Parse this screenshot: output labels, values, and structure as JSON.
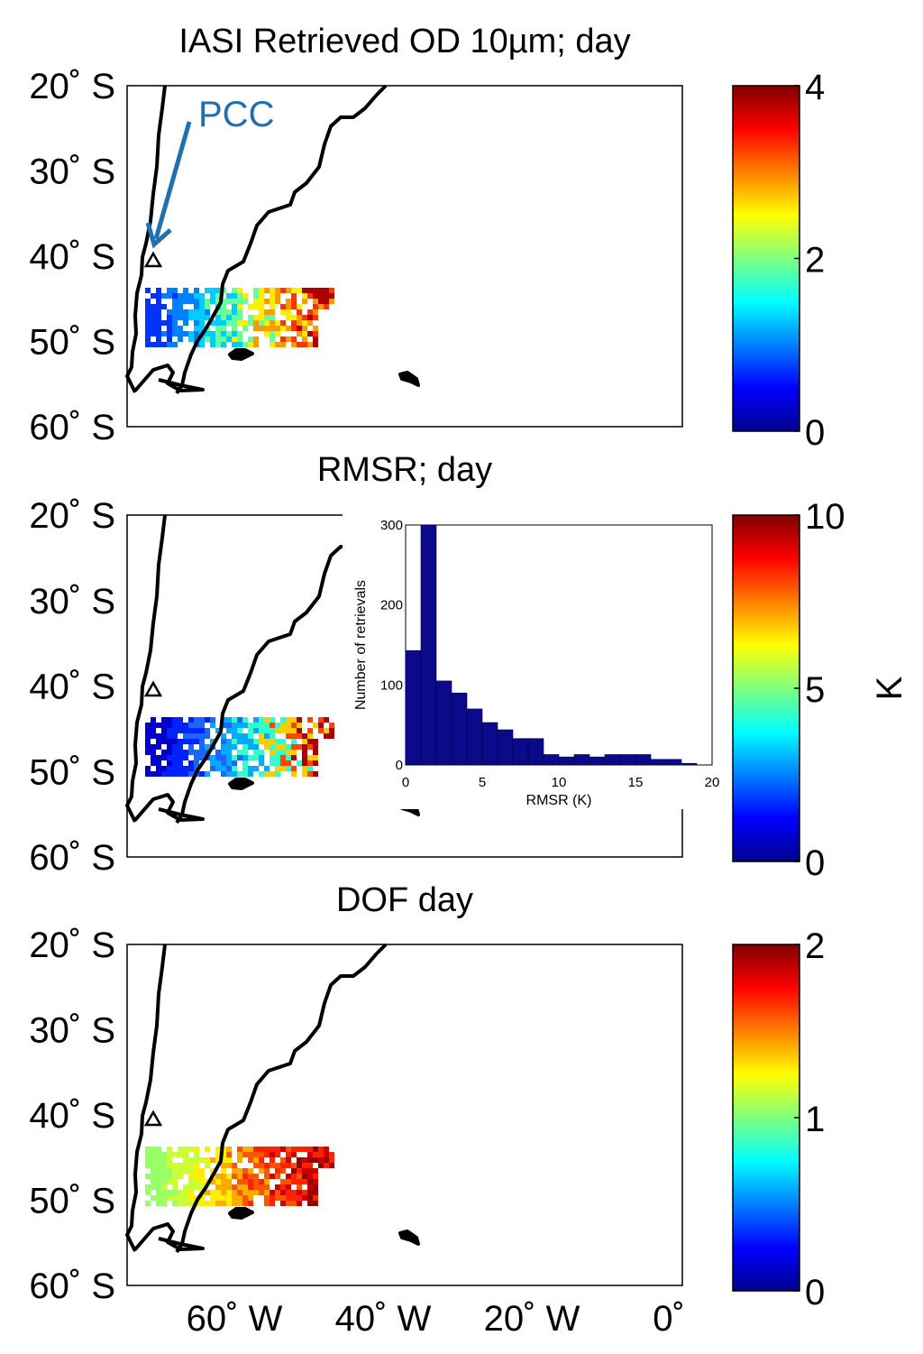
{
  "chart_data": [
    {
      "type": "heatmap",
      "title": "IASI Retrieved OD 10µm; day",
      "y_ticks": [
        "20˚ S",
        "30˚ S",
        "40˚ S",
        "50˚ S",
        "60˚ S"
      ],
      "ylim": [
        -60,
        -20
      ],
      "xlim": [
        -75,
        0
      ],
      "colorbar": {
        "min": 0,
        "max": 4,
        "ticks": [
          "0",
          "2",
          "4"
        ],
        "colormap": "jet"
      },
      "annotation": "PCC",
      "annotation_color": "#1f6fb2"
    },
    {
      "type": "heatmap",
      "title": "RMSR; day",
      "y_ticks": [
        "20˚ S",
        "30˚ S",
        "40˚ S",
        "50˚ S",
        "60˚ S"
      ],
      "ylim": [
        -60,
        -20
      ],
      "xlim": [
        -75,
        0
      ],
      "colorbar": {
        "min": 0,
        "max": 10,
        "ticks": [
          "0",
          "5",
          "10"
        ],
        "label": "K",
        "colormap": "jet"
      },
      "inset": {
        "type": "bar",
        "xlabel": "RMSR (K)",
        "ylabel": "Number of retrievals",
        "xlim": [
          0,
          20
        ],
        "ylim": [
          0,
          300
        ],
        "x_ticks": [
          "0",
          "5",
          "10",
          "15",
          "20"
        ],
        "y_ticks": [
          "0",
          "100",
          "200",
          "300"
        ],
        "bin_edges": [
          0,
          1,
          2,
          3,
          4,
          5,
          6,
          7,
          8,
          9,
          10,
          11,
          12,
          13,
          14,
          15,
          16,
          17,
          18,
          19
        ],
        "values": [
          143,
          300,
          105,
          90,
          70,
          53,
          44,
          33,
          33,
          13,
          10,
          13,
          10,
          13,
          13,
          13,
          7,
          7,
          2
        ],
        "bar_color": "#0a0a8a"
      }
    },
    {
      "type": "heatmap",
      "title": "DOF day",
      "y_ticks": [
        "20˚ S",
        "30˚ S",
        "40˚ S",
        "50˚ S",
        "60˚ S"
      ],
      "x_ticks": [
        "60˚ W",
        "40˚ W",
        "20˚ W",
        "0˚"
      ],
      "ylim": [
        -60,
        -20
      ],
      "xlim": [
        -75,
        0
      ],
      "colorbar": {
        "min": 0,
        "max": 2,
        "ticks": [
          "0",
          "1",
          "2"
        ],
        "colormap": "jet"
      }
    }
  ]
}
